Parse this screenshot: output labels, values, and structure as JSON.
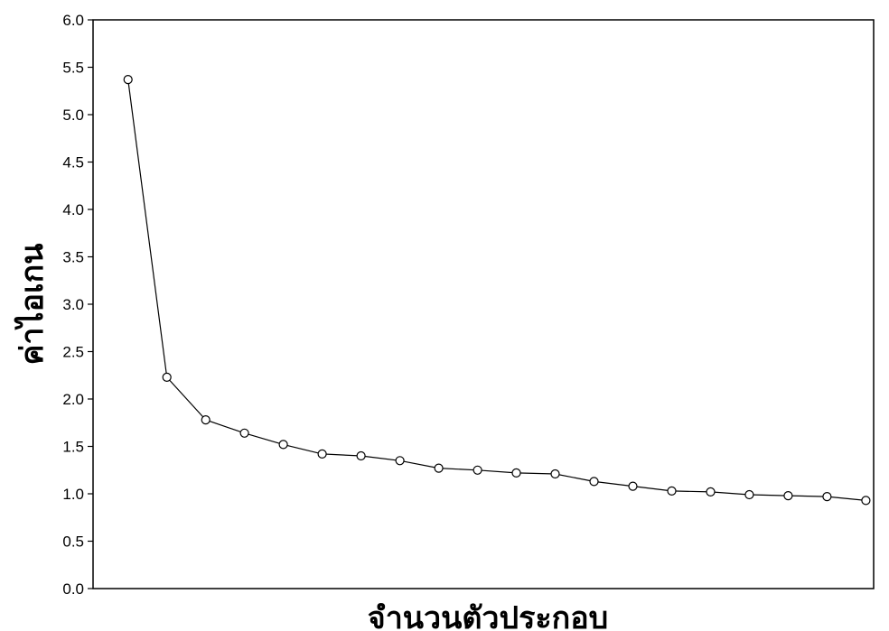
{
  "chart_data": {
    "type": "line",
    "title": "",
    "xlabel": "จำนวนตัวประกอบ",
    "ylabel": "ค่าไอเกน",
    "x": [
      1,
      2,
      3,
      4,
      5,
      6,
      7,
      8,
      9,
      10,
      11,
      12,
      13,
      14,
      15,
      16,
      17,
      18,
      19,
      20
    ],
    "xlim": [
      0.1,
      20.2
    ],
    "ylim": [
      0,
      6
    ],
    "yticks": [
      "0.0",
      "0.5",
      "1.0",
      "1.5",
      "2.0",
      "2.5",
      "3.0",
      "3.5",
      "4.0",
      "4.5",
      "5.0",
      "5.5",
      "6.0"
    ],
    "series": [
      {
        "values": [
          5.37,
          2.23,
          1.78,
          1.64,
          1.52,
          1.42,
          1.4,
          1.35,
          1.27,
          1.25,
          1.22,
          1.21,
          1.13,
          1.08,
          1.03,
          1.02,
          0.99,
          0.98,
          0.97,
          0.93
        ]
      }
    ],
    "grid": false,
    "marker": "open-circle",
    "line_color": "#000000"
  }
}
